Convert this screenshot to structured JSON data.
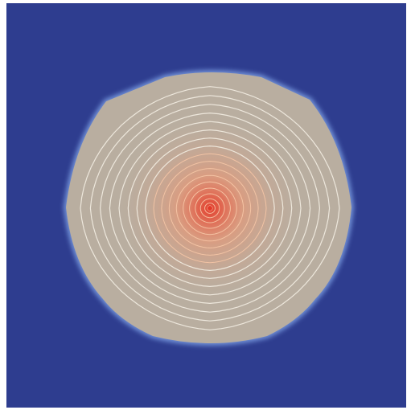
{
  "colors": {
    "background_field": "#2e3d8f",
    "boundary_glow": "#6f8fd6",
    "plateau_fill": "#b9aea0",
    "center_hot": "#e23a2a",
    "center_warm": "#f2906a",
    "contour_outer": "#f3ede2",
    "contour_inner": "#f6c6a6",
    "frame": "#ffffff"
  },
  "visualization": {
    "kind": "filled-contour-field",
    "contour_rings": 18,
    "colormap": "cool-to-warm"
  }
}
